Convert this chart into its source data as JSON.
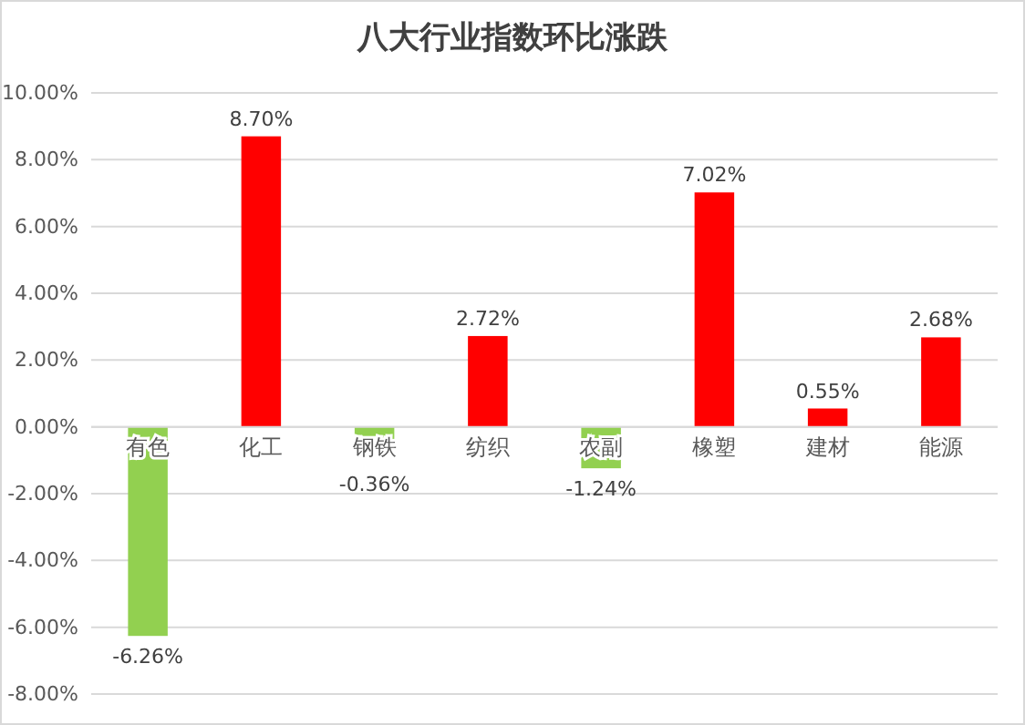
{
  "chart_data": {
    "type": "bar",
    "title": "八大行业指数环比涨跌",
    "categories": [
      "有色",
      "化工",
      "钢铁",
      "纺织",
      "农副",
      "橡塑",
      "建材",
      "能源"
    ],
    "values": [
      -6.26,
      8.7,
      -0.36,
      2.72,
      -1.24,
      7.02,
      0.55,
      2.68
    ],
    "value_labels": [
      "-6.26%",
      "8.70%",
      "-0.36%",
      "2.72%",
      "-1.24%",
      "7.02%",
      "0.55%",
      "2.68%"
    ],
    "colors": [
      "#92d050",
      "#ff0000",
      "#92d050",
      "#ff0000",
      "#92d050",
      "#ff0000",
      "#ff0000",
      "#ff0000"
    ],
    "ylim": [
      -8,
      10
    ],
    "yticks": [
      {
        "value": -8,
        "label": "-8.00%"
      },
      {
        "value": -6,
        "label": "-6.00%"
      },
      {
        "value": -4,
        "label": "-4.00%"
      },
      {
        "value": -2,
        "label": "-2.00%"
      },
      {
        "value": 0,
        "label": "0.00%"
      },
      {
        "value": 2,
        "label": "2.00%"
      },
      {
        "value": 4,
        "label": "4.00%"
      },
      {
        "value": 6,
        "label": "6.00%"
      },
      {
        "value": 8,
        "label": "8.00%"
      },
      {
        "value": 10,
        "label": "10.00%"
      }
    ],
    "grid": "y"
  }
}
